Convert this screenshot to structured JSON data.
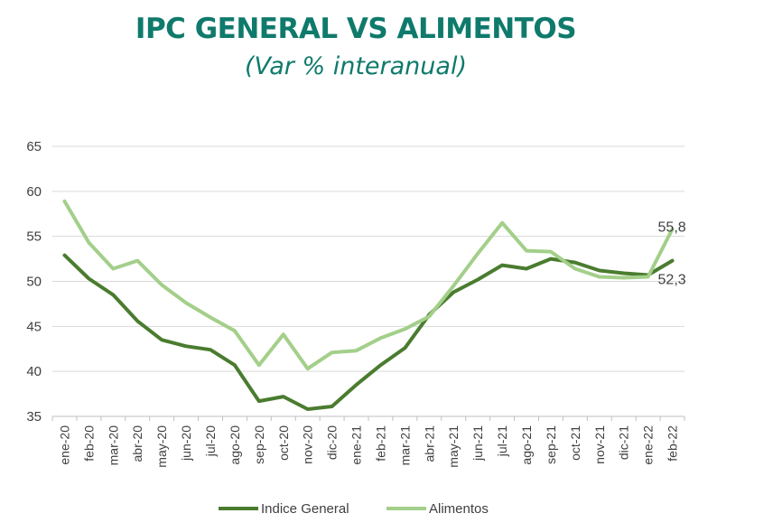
{
  "chart_data": {
    "type": "line",
    "title": "IPC GENERAL VS ALIMENTOS",
    "subtitle": "(Var % interanual)",
    "categories": [
      "ene-20",
      "feb-20",
      "mar-20",
      "abr-20",
      "may-20",
      "jun-20",
      "jul-20",
      "ago-20",
      "sep-20",
      "oct-20",
      "nov-20",
      "dic-20",
      "ene-21",
      "feb-21",
      "mar-21",
      "abr-21",
      "may-21",
      "jun-21",
      "jul-21",
      "ago-21",
      "sep-21",
      "oct-21",
      "nov-21",
      "dic-21",
      "ene-22",
      "feb-22"
    ],
    "ylim": [
      35,
      65
    ],
    "yticks": [
      "35",
      "40",
      "45",
      "50",
      "55",
      "60",
      "65"
    ],
    "grid": true,
    "legend_position": "bottom",
    "series": [
      {
        "name": "Indice General",
        "color": "#4a7c2f",
        "values": [
          52.9,
          50.3,
          48.5,
          45.6,
          43.5,
          42.8,
          42.4,
          40.7,
          36.7,
          37.2,
          35.8,
          36.1,
          38.5,
          40.7,
          42.6,
          46.3,
          48.8,
          50.2,
          51.8,
          51.4,
          52.5,
          52.1,
          51.2,
          50.9,
          50.7,
          52.3
        ]
      },
      {
        "name": "Alimentos",
        "color": "#a3cf8a",
        "values": [
          58.9,
          54.3,
          51.4,
          52.3,
          49.6,
          47.6,
          46.0,
          44.5,
          40.7,
          44.1,
          40.3,
          42.1,
          42.3,
          43.7,
          44.7,
          46.1,
          49.5,
          53.1,
          56.5,
          53.4,
          53.3,
          51.4,
          50.5,
          50.4,
          50.5,
          55.8
        ]
      }
    ],
    "data_labels": {
      "Alimentos_last": "55,8",
      "Indice_last": "52,3"
    }
  }
}
